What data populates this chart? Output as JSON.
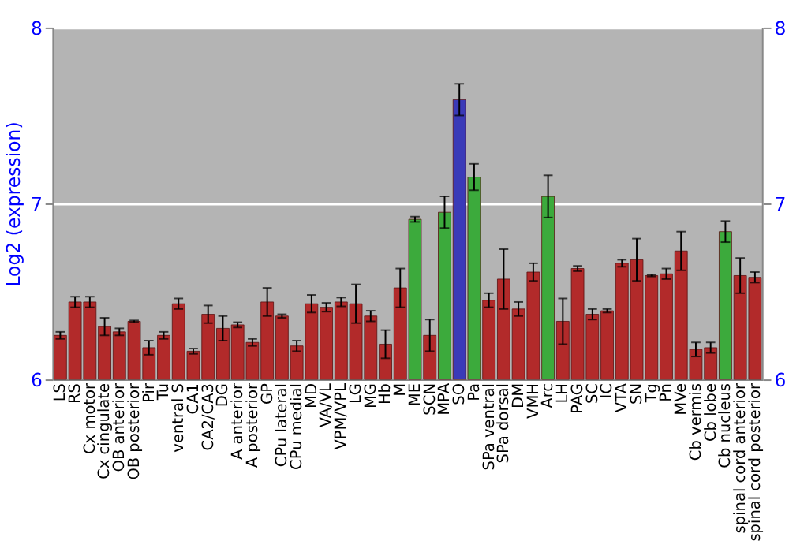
{
  "chart_data": {
    "type": "bar",
    "ylabel": "Log2 (expression)",
    "categories": [
      "LS",
      "RS",
      "Cx motor",
      "Cx cingulate",
      "OB anterior",
      "OB posterior",
      "Pir",
      "Tu",
      "ventral S",
      "CA1",
      "CA2/CA3",
      "DG",
      "A anterior",
      "A posterior",
      "GP",
      "CPu lateral",
      "CPu medial",
      "MD",
      "VA/VL",
      "VPM/VPL",
      "LG",
      "MG",
      "Hb",
      "M",
      "ME",
      "SCN",
      "MPA",
      "SO",
      "Pa",
      "SPa ventral",
      "SPa dorsal",
      "DM",
      "VMH",
      "Arc",
      "LH",
      "PAG",
      "SC",
      "IC",
      "VTA",
      "SN",
      "Tg",
      "Pn",
      "MVe",
      "Cb vermis",
      "Cb lobe",
      "Cb nucleus",
      "spinal cord anterior",
      "spinal cord posterior"
    ],
    "values": [
      6.25,
      6.44,
      6.44,
      6.3,
      6.27,
      6.33,
      6.18,
      6.25,
      6.43,
      6.16,
      6.37,
      6.29,
      6.31,
      6.21,
      6.44,
      6.36,
      6.19,
      6.43,
      6.41,
      6.44,
      6.43,
      6.36,
      6.2,
      6.52,
      6.91,
      6.25,
      6.95,
      7.59,
      7.15,
      6.45,
      6.57,
      6.4,
      6.61,
      7.04,
      6.33,
      6.63,
      6.37,
      6.39,
      6.66,
      6.68,
      6.59,
      6.6,
      6.73,
      6.17,
      6.18,
      6.84,
      6.59,
      6.58
    ],
    "errors": [
      0.02,
      0.03,
      0.03,
      0.05,
      0.02,
      0.005,
      0.04,
      0.02,
      0.03,
      0.015,
      0.05,
      0.07,
      0.015,
      0.02,
      0.08,
      0.01,
      0.03,
      0.05,
      0.025,
      0.025,
      0.11,
      0.03,
      0.08,
      0.11,
      0.015,
      0.09,
      0.09,
      0.09,
      0.075,
      0.04,
      0.17,
      0.04,
      0.05,
      0.12,
      0.13,
      0.015,
      0.03,
      0.01,
      0.02,
      0.12,
      0.005,
      0.03,
      0.11,
      0.04,
      0.03,
      0.06,
      0.1,
      0.03
    ],
    "colors": [
      "#b22a2a",
      "#b22a2a",
      "#b22a2a",
      "#b22a2a",
      "#b22a2a",
      "#b22a2a",
      "#b22a2a",
      "#b22a2a",
      "#b22a2a",
      "#b22a2a",
      "#b22a2a",
      "#b22a2a",
      "#b22a2a",
      "#b22a2a",
      "#b22a2a",
      "#b22a2a",
      "#b22a2a",
      "#b22a2a",
      "#b22a2a",
      "#b22a2a",
      "#b22a2a",
      "#b22a2a",
      "#b22a2a",
      "#b22a2a",
      "#3caa3c",
      "#b22a2a",
      "#3caa3c",
      "#3a3ab8",
      "#3caa3c",
      "#b22a2a",
      "#b22a2a",
      "#b22a2a",
      "#b22a2a",
      "#3caa3c",
      "#b22a2a",
      "#b22a2a",
      "#b22a2a",
      "#b22a2a",
      "#b22a2a",
      "#b22a2a",
      "#b22a2a",
      "#b22a2a",
      "#b22a2a",
      "#b22a2a",
      "#b22a2a",
      "#3caa3c",
      "#b22a2a",
      "#b22a2a"
    ],
    "ylim": [
      6,
      8
    ],
    "yticks": [
      6,
      7,
      8
    ],
    "y2lim": [
      6,
      8
    ],
    "y2ticks": [
      6,
      7,
      8
    ],
    "grid": "y"
  }
}
